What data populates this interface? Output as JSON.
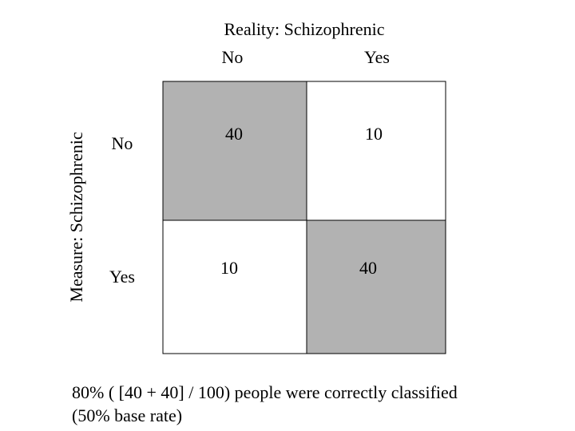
{
  "header": {
    "title": "Reality: Schizophrenic",
    "columns": [
      "No",
      "Yes"
    ]
  },
  "rows_header": {
    "title": "Measure: Schizophrenic",
    "rows": [
      "No",
      "Yes"
    ]
  },
  "table": {
    "rows": [
      [
        "40",
        "10"
      ],
      [
        "10",
        "40"
      ]
    ]
  },
  "caption": {
    "lines": [
      "80% ( [40 + 40] / 100) people were correctly classified",
      "(50% base rate)"
    ]
  }
}
